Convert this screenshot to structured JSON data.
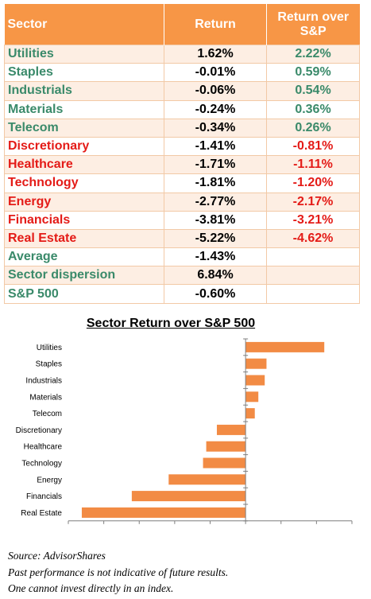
{
  "table": {
    "headers": [
      "Sector",
      "Return",
      "Return over S&P"
    ],
    "rows": [
      {
        "sector": "Utilities",
        "ret": "1.62%",
        "vs": "2.22%",
        "color": "green"
      },
      {
        "sector": "Staples",
        "ret": "-0.01%",
        "vs": "0.59%",
        "color": "green"
      },
      {
        "sector": "Industrials",
        "ret": "-0.06%",
        "vs": "0.54%",
        "color": "green"
      },
      {
        "sector": "Materials",
        "ret": "-0.24%",
        "vs": "0.36%",
        "color": "green"
      },
      {
        "sector": "Telecom",
        "ret": "-0.34%",
        "vs": "0.26%",
        "color": "green"
      },
      {
        "sector": "Discretionary",
        "ret": "-1.41%",
        "vs": "-0.81%",
        "color": "red"
      },
      {
        "sector": "Healthcare",
        "ret": "-1.71%",
        "vs": "-1.11%",
        "color": "red"
      },
      {
        "sector": "Technology",
        "ret": "-1.81%",
        "vs": "-1.20%",
        "color": "red"
      },
      {
        "sector": "Energy",
        "ret": "-2.77%",
        "vs": "-2.17%",
        "color": "red"
      },
      {
        "sector": "Financials",
        "ret": "-3.81%",
        "vs": "-3.21%",
        "color": "red"
      },
      {
        "sector": "Real Estate",
        "ret": "-5.22%",
        "vs": "-4.62%",
        "color": "red"
      },
      {
        "sector": "Average",
        "ret": "-1.43%",
        "vs": "",
        "color": "green"
      },
      {
        "sector": "Sector dispersion",
        "ret": "6.84%",
        "vs": "",
        "color": "green"
      },
      {
        "sector": "S&P 500",
        "ret": "-0.60%",
        "vs": "",
        "color": "green"
      }
    ]
  },
  "colors": {
    "header_bg": "#f79646",
    "bar": "#f28b44",
    "positive_text": "#3a8a6a",
    "negative_text": "#e41b17"
  },
  "chart_data": {
    "type": "bar",
    "orientation": "horizontal",
    "title": "Sector Return over S&P 500",
    "categories": [
      "Utilities",
      "Staples",
      "Industrials",
      "Materials",
      "Telecom",
      "Discretionary",
      "Healthcare",
      "Technology",
      "Energy",
      "Financials",
      "Real Estate"
    ],
    "values": [
      2.22,
      0.59,
      0.54,
      0.36,
      0.26,
      -0.81,
      -1.11,
      -1.2,
      -2.17,
      -3.21,
      -4.62
    ],
    "xlim": [
      -5.0,
      3.0
    ],
    "xticks": [
      "-5.0%",
      "-4.0%",
      "-3.0%",
      "-2.0%",
      "-1.0%",
      "0.0%",
      "1.0%",
      "2.0%",
      "3.0%"
    ],
    "xlabel": "",
    "ylabel": "",
    "grid": false,
    "legend": "none"
  },
  "footnotes": {
    "source": "Source: AdvisorShares",
    "disclaimer1": "Past performance is not indicative of future results.",
    "disclaimer2": "One cannot invest directly in an index."
  }
}
